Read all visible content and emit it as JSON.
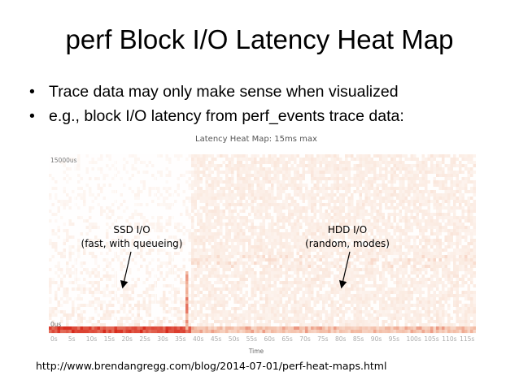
{
  "slide": {
    "title": "perf Block I/O Latency Heat Map",
    "bullets": [
      "Trace data may only make sense when visualized",
      "e.g., block I/O latency from perf_events trace data:"
    ],
    "bullet_char": "•",
    "source_url": "http://www.brendangregg.com/blog/2014-07-01/perf-heat-maps.html"
  },
  "heatmap": {
    "title": "Latency Heat Map: 15ms max",
    "y_max_label": "15000us",
    "y_min_label": "0us",
    "x_label": "Time",
    "x_ticks": [
      "0s",
      "5s",
      "10s",
      "15s",
      "20s",
      "25s",
      "30s",
      "35s",
      "40s",
      "45s",
      "50s",
      "55s",
      "60s",
      "65s",
      "70s",
      "75s",
      "80s",
      "85s",
      "90s",
      "95s",
      "100s",
      "105s",
      "110s",
      "115s"
    ],
    "colors": {
      "low": "#fbeae0",
      "mid": "#f2b8a0",
      "high": "#d72a1c"
    }
  },
  "annotations": {
    "ssd": {
      "line1": "SSD I/O",
      "line2": "(fast, with queueing)"
    },
    "hdd": {
      "line1": "HDD I/O",
      "line2": "(random, modes)"
    }
  }
}
